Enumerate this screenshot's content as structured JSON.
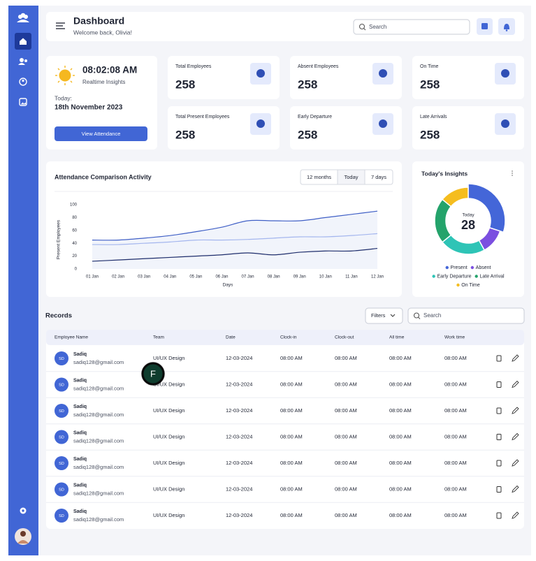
{
  "header": {
    "title": "Dashboard",
    "subtitle": "Welcome back, Olivia!",
    "search_placeholder": "Search"
  },
  "time_card": {
    "time": "08:02:08 AM",
    "caption": "Realtime Insights",
    "date_label": "Today:",
    "date": "18th November 2023",
    "button": "View Attendance"
  },
  "stats": [
    {
      "label": "Total Employees",
      "value": 258
    },
    {
      "label": "Absent Employees",
      "value": 258
    },
    {
      "label": "On Time",
      "value": 258
    },
    {
      "label": "Total Present Employees",
      "value": 258
    },
    {
      "label": "Early Departure",
      "value": 258
    },
    {
      "label": "Late Arrivals",
      "value": 258
    }
  ],
  "chart_controls": [
    "12 months",
    "Today",
    "7 days"
  ],
  "chart_data": [
    {
      "type": "line",
      "title": "Attendance Comparison  Activity",
      "xlabel": "Days",
      "ylabel": "Present Employees",
      "categories": [
        "01 Jan",
        "02 Jan",
        "03 Jan",
        "04 Jan",
        "05 Jan",
        "06 Jan",
        "07 Jan",
        "08 Jan",
        "09 Jan",
        "10 Jan",
        "11 Jan",
        "12 Jan"
      ],
      "series": [
        {
          "color": "#3f5fc6",
          "values": [
            45,
            45,
            48,
            52,
            58,
            65,
            75,
            75,
            75,
            80,
            85,
            90
          ]
        },
        {
          "color": "#a4b6ee",
          "values": [
            38,
            38,
            40,
            42,
            45,
            45,
            46,
            48,
            50,
            50,
            52,
            55
          ]
        },
        {
          "color": "#1e2d6b",
          "values": [
            12,
            14,
            16,
            18,
            20,
            22,
            25,
            22,
            26,
            28,
            28,
            32
          ]
        }
      ],
      "ylim": [
        0,
        100
      ],
      "yticks": [
        0,
        20,
        40,
        60,
        80,
        100
      ],
      "grid": false
    },
    {
      "type": "pie",
      "title": "Today's Insights",
      "center_label": "Today",
      "center_value": 28,
      "categories": [
        "Present",
        "Absent",
        "Early Departure",
        "Late Arrival",
        "On Time"
      ],
      "values": [
        30,
        12,
        22,
        22,
        14
      ],
      "colors": [
        "#4466d8",
        "#7b4fe0",
        "#2ec4b6",
        "#24a36b",
        "#f5bd1f"
      ]
    }
  ],
  "records": {
    "title": "Records",
    "filter_button": "Filters",
    "search_placeholder": "Search",
    "columns": [
      "Employee Name",
      "Team",
      "Date",
      "Clock-in",
      "Clock-out",
      "All time",
      "Work time"
    ],
    "rows": [
      {
        "initials": "SD",
        "name": "Sadiq",
        "email": "sadiq128@gmail.com",
        "team": "UI/UX Design",
        "date": "12-03-2024",
        "clock_in": "08:00 AM",
        "clock_out": "08:00 AM",
        "all_time": "08:00 AM",
        "work_time": "08:00 AM"
      },
      {
        "initials": "SD",
        "name": "Sadiq",
        "email": "sadiq128@gmail.com",
        "team": "UI/UX Design",
        "date": "12-03-2024",
        "clock_in": "08:00 AM",
        "clock_out": "08:00 AM",
        "all_time": "08:00 AM",
        "work_time": "08:00 AM"
      },
      {
        "initials": "SD",
        "name": "Sadiq",
        "email": "sadiq128@gmail.com",
        "team": "UI/UX Design",
        "date": "12-03-2024",
        "clock_in": "08:00 AM",
        "clock_out": "08:00 AM",
        "all_time": "08:00 AM",
        "work_time": "08:00 AM"
      },
      {
        "initials": "SD",
        "name": "Sadiq",
        "email": "sadiq128@gmail.com",
        "team": "UI/UX Design",
        "date": "12-03-2024",
        "clock_in": "08:00 AM",
        "clock_out": "08:00 AM",
        "all_time": "08:00 AM",
        "work_time": "08:00 AM"
      },
      {
        "initials": "SD",
        "name": "Sadiq",
        "email": "sadiq128@gmail.com",
        "team": "UI/UX Design",
        "date": "12-03-2024",
        "clock_in": "08:00 AM",
        "clock_out": "08:00 AM",
        "all_time": "08:00 AM",
        "work_time": "08:00 AM"
      },
      {
        "initials": "SD",
        "name": "Sadiq",
        "email": "sadiq128@gmail.com",
        "team": "UI/UX Design",
        "date": "12-03-2024",
        "clock_in": "08:00 AM",
        "clock_out": "08:00 AM",
        "all_time": "08:00 AM",
        "work_time": "08:00 AM"
      },
      {
        "initials": "SD",
        "name": "Sadiq",
        "email": "sadiq128@gmail.com",
        "team": "UI/UX Design",
        "date": "12-03-2024",
        "clock_in": "08:00 AM",
        "clock_out": "08:00 AM",
        "all_time": "08:00 AM",
        "work_time": "08:00 AM"
      }
    ]
  },
  "badge": "F"
}
